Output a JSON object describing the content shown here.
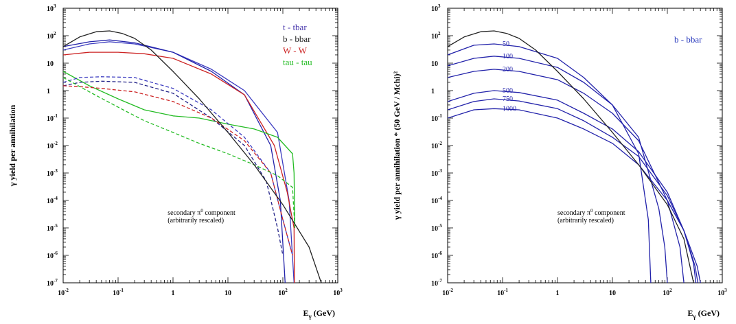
{
  "chart_data": [
    {
      "type": "line",
      "x_scale": "log",
      "y_scale": "log",
      "xlim": [
        0.01,
        1000
      ],
      "ylim": [
        1e-07,
        1000
      ],
      "xlabel": "E_γ (GeV)",
      "ylabel": "γ yield per annihilation",
      "x_tick_labels": [
        {
          "base": "10",
          "exp": "-2"
        },
        {
          "base": "10",
          "exp": "-1"
        },
        {
          "base": "1",
          "exp": ""
        },
        {
          "base": "10",
          "exp": ""
        },
        {
          "base": "10",
          "exp": "2"
        },
        {
          "base": "10",
          "exp": "3"
        }
      ],
      "y_tick_labels": [
        {
          "base": "10",
          "exp": "3"
        },
        {
          "base": "10",
          "exp": "2"
        },
        {
          "base": "10",
          "exp": ""
        },
        {
          "base": "1",
          "exp": ""
        },
        {
          "base": "10",
          "exp": "-1"
        },
        {
          "base": "10",
          "exp": "-2"
        },
        {
          "base": "10",
          "exp": "-3"
        },
        {
          "base": "10",
          "exp": "-4"
        },
        {
          "base": "10",
          "exp": "-5"
        },
        {
          "base": "10",
          "exp": "-6"
        },
        {
          "base": "10",
          "exp": "-7"
        }
      ],
      "annotation": {
        "line1": "secondary π",
        "sup": "0",
        "line1_rest": " component",
        "line2": "(arbitrarily rescaled)"
      },
      "legend": [
        {
          "label": "t - tbar",
          "color": "#4433aa"
        },
        {
          "label": "b - bbar",
          "color": "#222222"
        },
        {
          "label": "W - W",
          "color": "#cc2222"
        },
        {
          "label": "tau - tau",
          "color": "#22bb22"
        }
      ],
      "series": [
        {
          "group": "t - tbar",
          "style": "solid",
          "color": "#3b3bc0",
          "x": [
            0.01,
            0.03,
            0.07,
            0.2,
            1,
            5,
            20,
            80,
            130,
            160
          ],
          "y": [
            30,
            50,
            60,
            50,
            25,
            6,
            1,
            0.03,
            0.0001,
            1e-07
          ]
        },
        {
          "group": "b - bbar",
          "style": "solid",
          "color": "#2222aa",
          "x": [
            0.01,
            0.03,
            0.07,
            0.2,
            1,
            5,
            20,
            60,
            90,
            110
          ],
          "y": [
            40,
            60,
            70,
            55,
            25,
            5,
            0.7,
            0.01,
            0.0001,
            1e-07
          ]
        },
        {
          "group": "W - W",
          "style": "solid",
          "color": "#cc2222",
          "x": [
            0.01,
            0.03,
            0.1,
            0.3,
            1,
            5,
            20,
            70,
            120,
            160,
            162
          ],
          "y": [
            20,
            25,
            25,
            22,
            15,
            4,
            0.7,
            0.01,
            0.0002,
            1e-05,
            1e-07
          ]
        },
        {
          "group": "tau - tau",
          "style": "solid",
          "color": "#22bb22",
          "x": [
            0.01,
            0.03,
            0.1,
            0.3,
            1,
            3,
            10,
            30,
            80,
            150,
            160,
            165
          ],
          "y": [
            5,
            1.5,
            0.5,
            0.2,
            0.12,
            0.1,
            0.06,
            0.04,
            0.02,
            0.005,
            0.001,
            1e-05
          ]
        },
        {
          "group": "t - tbar",
          "style": "dashed",
          "color": "#3b3bc0",
          "x": [
            0.01,
            0.02,
            0.05,
            0.2,
            1,
            5,
            20,
            60,
            100,
            150
          ],
          "y": [
            2,
            3,
            3.2,
            3,
            1.2,
            0.2,
            0.02,
            0.001,
            2e-05,
            1e-06
          ]
        },
        {
          "group": "b - bbar",
          "style": "dashed",
          "color": "#222288",
          "x": [
            0.01,
            0.02,
            0.05,
            0.2,
            1,
            5,
            20,
            50,
            80,
            100
          ],
          "y": [
            1.5,
            2,
            2.2,
            2,
            0.8,
            0.1,
            0.01,
            0.0005,
            1e-05,
            1e-06
          ]
        },
        {
          "group": "W - W",
          "style": "dashed",
          "color": "#cc2222",
          "x": [
            0.01,
            0.02,
            0.05,
            0.2,
            1,
            5,
            20,
            60,
            100,
            150
          ],
          "y": [
            1.5,
            1.4,
            1.2,
            0.9,
            0.4,
            0.1,
            0.015,
            0.001,
            2e-05,
            1e-06
          ]
        },
        {
          "group": "tau - tau",
          "style": "dashed",
          "color": "#22bb22",
          "x": [
            0.01,
            0.03,
            0.1,
            0.3,
            1,
            3,
            10,
            30,
            80,
            150,
            165
          ],
          "y": [
            3,
            0.9,
            0.25,
            0.08,
            0.03,
            0.012,
            0.005,
            0.002,
            0.0008,
            0.0003,
            1e-05
          ]
        },
        {
          "group": "π0 component",
          "style": "solid",
          "color": "#222222",
          "x": [
            0.01,
            0.02,
            0.04,
            0.07,
            0.12,
            0.2,
            0.4,
            1,
            3,
            10,
            30,
            100,
            300,
            500
          ],
          "y": [
            40,
            90,
            140,
            150,
            120,
            80,
            30,
            5,
            0.5,
            0.03,
            0.002,
            7e-05,
            2e-06,
            1e-07
          ]
        }
      ]
    },
    {
      "type": "line",
      "x_scale": "log",
      "y_scale": "log",
      "xlim": [
        0.01,
        1000
      ],
      "ylim": [
        1e-07,
        1000
      ],
      "xlabel": "E_γ (GeV)",
      "ylabel": "γ yield per annihilation * (50 GeV / Mchi)²",
      "x_tick_labels": [
        {
          "base": "10",
          "exp": "-2"
        },
        {
          "base": "10",
          "exp": "-1"
        },
        {
          "base": "1",
          "exp": ""
        },
        {
          "base": "10",
          "exp": ""
        },
        {
          "base": "10",
          "exp": "2"
        },
        {
          "base": "10",
          "exp": "3"
        }
      ],
      "y_tick_labels": [
        {
          "base": "10",
          "exp": "3"
        },
        {
          "base": "10",
          "exp": "2"
        },
        {
          "base": "10",
          "exp": ""
        },
        {
          "base": "1",
          "exp": ""
        },
        {
          "base": "10",
          "exp": "-1"
        },
        {
          "base": "10",
          "exp": "-2"
        },
        {
          "base": "10",
          "exp": "-3"
        },
        {
          "base": "10",
          "exp": "-4"
        },
        {
          "base": "10",
          "exp": "-5"
        },
        {
          "base": "10",
          "exp": "-6"
        },
        {
          "base": "10",
          "exp": "-7"
        }
      ],
      "annotation": {
        "line1": "secondary π",
        "sup": "0",
        "line1_rest": " component",
        "line2": "(arbitrarily rescaled)"
      },
      "title_label": "b - bbar",
      "mass_labels": [
        {
          "text": "50",
          "x": 0.1,
          "y": 50
        },
        {
          "text": "100",
          "x": 0.1,
          "y": 18
        },
        {
          "text": "200",
          "x": 0.1,
          "y": 6
        },
        {
          "text": "500",
          "x": 0.1,
          "y": 1.0
        },
        {
          "text": "750",
          "x": 0.1,
          "y": 0.5
        },
        {
          "text": "1000",
          "x": 0.1,
          "y": 0.22
        }
      ],
      "series": [
        {
          "name": "50",
          "color": "#2222aa",
          "x": [
            0.01,
            0.03,
            0.07,
            0.2,
            1,
            3,
            10,
            30,
            45,
            50
          ],
          "y": [
            20,
            45,
            50,
            40,
            15,
            3,
            0.3,
            0.005,
            2e-05,
            1e-07
          ]
        },
        {
          "name": "100",
          "color": "#2222aa",
          "x": [
            0.01,
            0.03,
            0.07,
            0.2,
            1,
            3,
            10,
            30,
            70,
            90,
            100
          ],
          "y": [
            8,
            15,
            18,
            15,
            7,
            2,
            0.3,
            0.02,
            5e-05,
            2e-06,
            1e-07
          ]
        },
        {
          "name": "200",
          "color": "#2222aa",
          "x": [
            0.01,
            0.03,
            0.07,
            0.2,
            1,
            3,
            10,
            30,
            100,
            170,
            200
          ],
          "y": [
            3,
            5,
            6,
            5,
            2.5,
            0.8,
            0.15,
            0.015,
            0.0001,
            2e-06,
            1e-07
          ]
        },
        {
          "name": "500",
          "color": "#2222aa",
          "x": [
            0.01,
            0.03,
            0.07,
            0.2,
            1,
            3,
            10,
            30,
            100,
            200,
            300,
            330
          ],
          "y": [
            0.4,
            0.8,
            1.0,
            0.85,
            0.45,
            0.15,
            0.04,
            0.006,
            0.0002,
            8e-06,
            5e-07,
            1e-07
          ]
        },
        {
          "name": "750",
          "color": "#2222aa",
          "x": [
            0.01,
            0.03,
            0.07,
            0.2,
            1,
            3,
            10,
            30,
            100,
            200,
            320,
            360
          ],
          "y": [
            0.2,
            0.4,
            0.5,
            0.42,
            0.22,
            0.08,
            0.02,
            0.004,
            0.00015,
            8e-06,
            4e-07,
            1e-07
          ]
        },
        {
          "name": "1000",
          "color": "#2222aa",
          "x": [
            0.01,
            0.03,
            0.07,
            0.2,
            1,
            3,
            10,
            30,
            100,
            200,
            350,
            400
          ],
          "y": [
            0.1,
            0.2,
            0.22,
            0.2,
            0.1,
            0.04,
            0.012,
            0.002,
            0.0001,
            8e-06,
            4e-07,
            1e-07
          ]
        },
        {
          "name": "π0 component",
          "color": "#222222",
          "x": [
            0.01,
            0.02,
            0.04,
            0.07,
            0.12,
            0.2,
            0.4,
            1,
            3,
            10,
            30,
            100,
            200,
            300
          ],
          "y": [
            40,
            90,
            140,
            150,
            120,
            80,
            30,
            5,
            0.5,
            0.03,
            0.002,
            7e-05,
            4e-06,
            1e-07
          ]
        }
      ]
    }
  ]
}
